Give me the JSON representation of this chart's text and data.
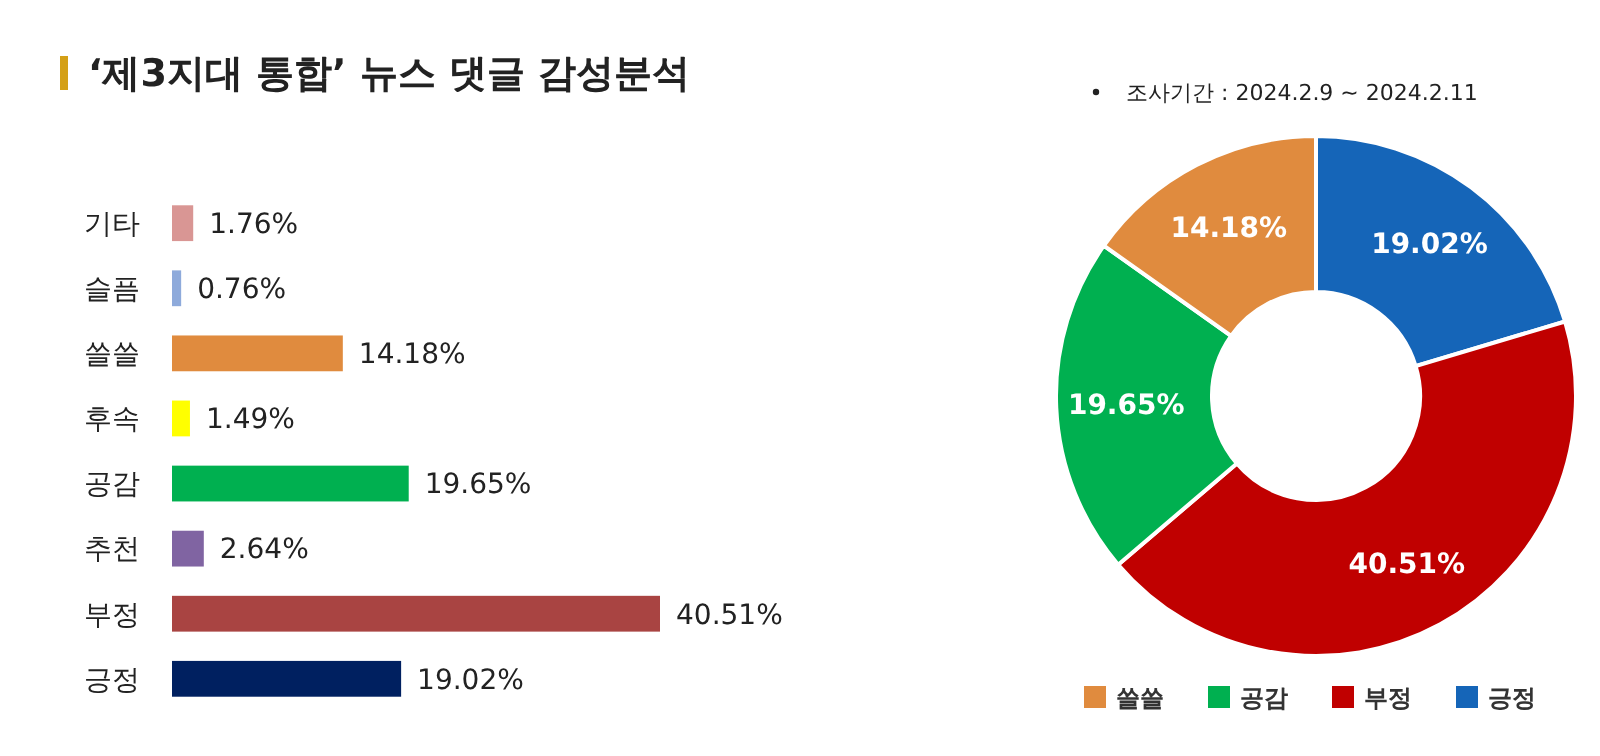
{
  "chart_data": [
    {
      "type": "bar",
      "orientation": "horizontal",
      "title": "‘제3지대 통합’ 뉴스 댓글 감성분석",
      "categories": [
        "기타",
        "슬픔",
        "쓸쓸",
        "후속",
        "공감",
        "추천",
        "부정",
        "긍정"
      ],
      "values": [
        1.76,
        0.76,
        14.18,
        1.49,
        19.65,
        2.64,
        40.51,
        19.02
      ],
      "colors": [
        "#d99694",
        "#8eaadb",
        "#e08b3e",
        "#ffff00",
        "#00b050",
        "#8064a2",
        "#a94442",
        "#002060"
      ],
      "value_labels": [
        "1.76%",
        "0.76%",
        "14.18%",
        "1.49%",
        "19.65%",
        "2.64%",
        "40.51%",
        "19.02%"
      ]
    },
    {
      "type": "donut",
      "annotations": [
        "조사기간 : 2024.2.9 ~ 2024.2.11"
      ],
      "categories": [
        "긍정",
        "부정",
        "공감",
        "쓸쓸"
      ],
      "values": [
        19.02,
        40.51,
        19.65,
        14.18
      ],
      "colors": [
        "#1565b8",
        "#c00000",
        "#00b050",
        "#e08b3e"
      ],
      "value_labels": [
        "19.02%",
        "40.51%",
        "19.65%",
        "14.18%"
      ],
      "legend": "bottom"
    }
  ]
}
